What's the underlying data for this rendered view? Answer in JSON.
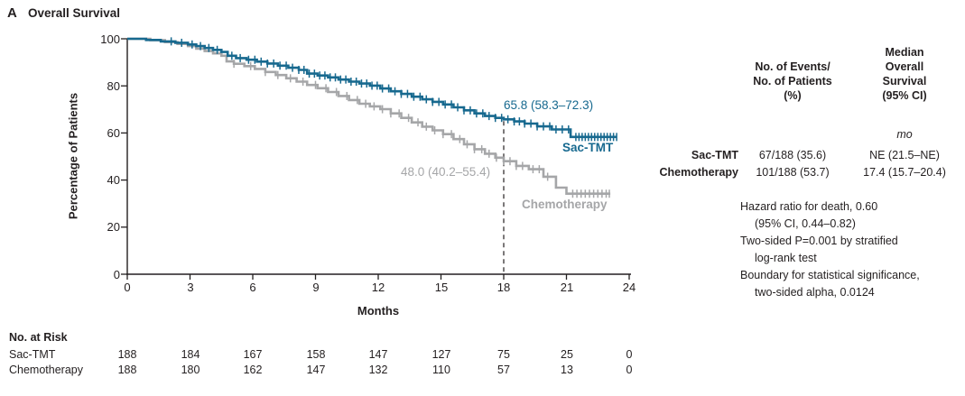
{
  "header": {
    "panel_label": "A",
    "title": "Overall Survival"
  },
  "chart_data": {
    "type": "line",
    "subtype": "kaplan-meier",
    "title": "Overall Survival",
    "xlabel": "Months",
    "ylabel": "Percentage of Patients",
    "xlim": [
      0,
      24
    ],
    "ylim": [
      0,
      100
    ],
    "x_ticks": [
      0,
      3,
      6,
      9,
      12,
      15,
      18,
      21,
      24
    ],
    "y_ticks": [
      0,
      20,
      40,
      60,
      80,
      100
    ],
    "grid": false,
    "reference_line_x": 18,
    "axis_color": "#231f20",
    "series": [
      {
        "name": "Sac-TMT",
        "color": "#17698f",
        "annotation": "65.8 (58.3–72.3)",
        "steps": [
          [
            0,
            100
          ],
          [
            0.9,
            99.5
          ],
          [
            1.6,
            98.9
          ],
          [
            2.3,
            98.3
          ],
          [
            2.9,
            97.6
          ],
          [
            3.3,
            96.9
          ],
          [
            3.7,
            96.1
          ],
          [
            4.1,
            95.3
          ],
          [
            4.5,
            94.4
          ],
          [
            4.8,
            92.8
          ],
          [
            5.2,
            91.8
          ],
          [
            5.7,
            91.1
          ],
          [
            6.2,
            90.3
          ],
          [
            6.7,
            89.5
          ],
          [
            7.2,
            88.6
          ],
          [
            7.7,
            87.7
          ],
          [
            8.2,
            86.8
          ],
          [
            8.6,
            85.2
          ],
          [
            9.1,
            84.4
          ],
          [
            9.6,
            83.6
          ],
          [
            10.1,
            82.7
          ],
          [
            10.6,
            81.8
          ],
          [
            11.1,
            81.0
          ],
          [
            11.6,
            80.1
          ],
          [
            12.1,
            78.9
          ],
          [
            12.6,
            77.7
          ],
          [
            13.1,
            76.6
          ],
          [
            13.6,
            75.4
          ],
          [
            14.1,
            74.3
          ],
          [
            14.6,
            73.2
          ],
          [
            15.1,
            72.1
          ],
          [
            15.6,
            70.9
          ],
          [
            16.1,
            69.6
          ],
          [
            16.6,
            68.3
          ],
          [
            17.1,
            67.2
          ],
          [
            17.6,
            66.4
          ],
          [
            18.0,
            65.8
          ],
          [
            18.5,
            64.9
          ],
          [
            19.0,
            64.0
          ],
          [
            19.6,
            62.8
          ],
          [
            20.3,
            61.5
          ],
          [
            21.2,
            58.3
          ],
          [
            23.4,
            58.3
          ]
        ],
        "censor_marks": [
          2.1,
          2.6,
          3.1,
          3.5,
          3.9,
          4.3,
          5.0,
          5.4,
          5.8,
          6.1,
          6.4,
          6.7,
          7.0,
          7.3,
          7.6,
          7.9,
          8.2,
          8.45,
          8.7,
          8.95,
          9.2,
          9.45,
          9.7,
          9.95,
          10.2,
          10.45,
          10.7,
          10.95,
          11.2,
          11.45,
          11.7,
          11.95,
          12.2,
          12.5,
          12.8,
          13.1,
          13.4,
          13.7,
          14.0,
          14.3,
          14.6,
          14.9,
          15.2,
          15.5,
          15.8,
          16.1,
          16.4,
          16.7,
          17.0,
          17.3,
          17.6,
          17.9,
          18.2,
          18.5,
          18.75,
          19.0,
          19.3,
          19.6,
          19.9,
          20.2,
          20.5,
          20.8,
          21.1,
          21.45,
          21.6,
          21.75,
          21.9,
          22.05,
          22.2,
          22.35,
          22.5,
          22.65,
          22.8,
          22.95,
          23.1,
          23.25,
          23.4
        ]
      },
      {
        "name": "Chemotherapy",
        "color": "#a5a6a8",
        "annotation": "48.0 (40.2–55.4)",
        "steps": [
          [
            0,
            100
          ],
          [
            1.1,
            99.4
          ],
          [
            1.8,
            98.6
          ],
          [
            2.4,
            97.8
          ],
          [
            2.9,
            96.9
          ],
          [
            3.3,
            95.8
          ],
          [
            3.7,
            94.8
          ],
          [
            4.1,
            93.8
          ],
          [
            4.5,
            92.8
          ],
          [
            4.75,
            90.4
          ],
          [
            5.1,
            89.4
          ],
          [
            5.6,
            88.4
          ],
          [
            6.1,
            87.2
          ],
          [
            6.6,
            85.9
          ],
          [
            7.1,
            84.6
          ],
          [
            7.6,
            83.2
          ],
          [
            8.1,
            81.8
          ],
          [
            8.6,
            80.4
          ],
          [
            9.1,
            79.0
          ],
          [
            9.6,
            77.4
          ],
          [
            10.1,
            75.7
          ],
          [
            10.6,
            74.0
          ],
          [
            11.1,
            72.4
          ],
          [
            11.6,
            71.3
          ],
          [
            12.1,
            70.1
          ],
          [
            12.6,
            68.3
          ],
          [
            13.1,
            66.4
          ],
          [
            13.6,
            64.5
          ],
          [
            14.1,
            62.7
          ],
          [
            14.6,
            61.1
          ],
          [
            15.1,
            59.5
          ],
          [
            15.6,
            57.4
          ],
          [
            16.1,
            55.2
          ],
          [
            16.6,
            53.1
          ],
          [
            17.1,
            51.2
          ],
          [
            17.6,
            49.5
          ],
          [
            18.0,
            48.0
          ],
          [
            18.6,
            46.0
          ],
          [
            19.2,
            44.6
          ],
          [
            19.9,
            41.4
          ],
          [
            20.5,
            36.8
          ],
          [
            21.0,
            34.2
          ],
          [
            23.1,
            34.2
          ]
        ],
        "censor_marks": [
          5.1,
          5.9,
          6.6,
          7.2,
          7.8,
          8.4,
          9.0,
          9.5,
          10.0,
          10.5,
          11.0,
          11.4,
          11.8,
          12.2,
          12.6,
          13.0,
          13.45,
          13.9,
          14.3,
          14.7,
          15.1,
          15.5,
          15.9,
          16.25,
          16.6,
          16.95,
          17.3,
          17.65,
          18.0,
          18.3,
          18.6,
          18.9,
          19.4,
          19.7,
          20.1,
          21.3,
          21.5,
          21.7,
          21.9,
          22.1,
          22.3,
          22.5,
          22.7,
          22.9,
          23.05
        ]
      }
    ]
  },
  "summary": {
    "col1_lines": [
      "No. of Events/",
      "No. of Patients",
      "(%)"
    ],
    "col2_lines": [
      "Median",
      "Overall",
      "Survival",
      "(95% CI)"
    ],
    "unit": "mo",
    "rows": [
      {
        "label": "Sac-TMT",
        "events": "67/188 (35.6)",
        "median": "NE (21.5–NE)"
      },
      {
        "label": "Chemotherapy",
        "events": "101/188 (53.7)",
        "median": "17.4 (15.7–20.4)"
      }
    ]
  },
  "stats": {
    "lines": [
      "Hazard ratio for death, 0.60",
      "(95% CI, 0.44–0.82)",
      "Two-sided P=0.001 by stratified",
      "log-rank test",
      "Boundary for statistical significance,",
      "two-sided alpha, 0.0124"
    ]
  },
  "risk_table": {
    "title": "No. at Risk",
    "rows": [
      {
        "label": "Sac-TMT",
        "values": [
          "188",
          "184",
          "167",
          "158",
          "147",
          "127",
          "75",
          "25",
          "0"
        ]
      },
      {
        "label": "Chemotherapy",
        "values": [
          "188",
          "180",
          "162",
          "147",
          "132",
          "110",
          "57",
          "13",
          "0"
        ]
      }
    ]
  }
}
